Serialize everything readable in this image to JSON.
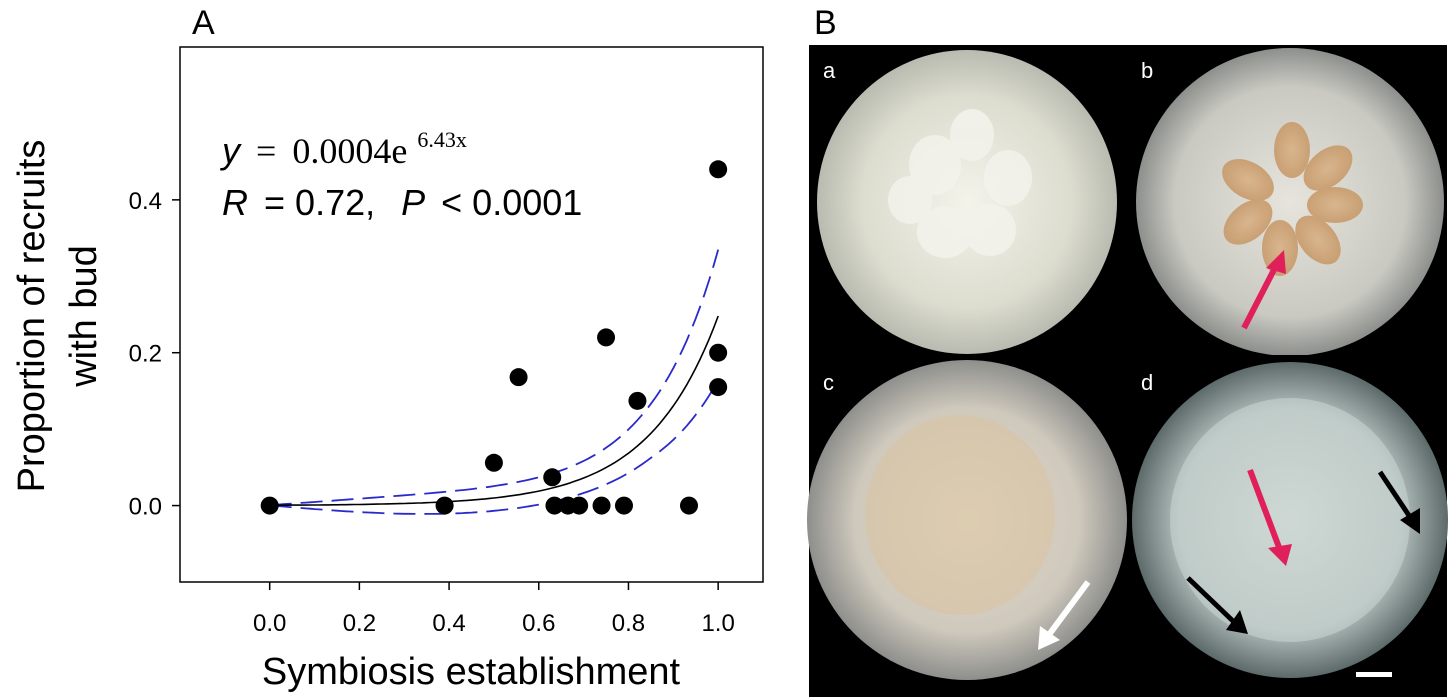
{
  "panel_a": {
    "letter": "A",
    "equation": {
      "y_var": "y",
      "equals": "=",
      "coef": "0.0004e",
      "exponent": "6.43x",
      "r_var": "R",
      "r_value": "= 0.72,",
      "p_var": "P",
      "p_value": "< 0.0001"
    }
  },
  "panel_b": {
    "letter": "B",
    "sub_labels": [
      "a",
      "b",
      "c",
      "d"
    ]
  },
  "chart_data": {
    "type": "scatter",
    "xlabel": "Symbiosis establishment",
    "ylabel_lines": [
      "Proportion of recruits",
      "with bud"
    ],
    "xlim": [
      -0.2,
      1.1
    ],
    "ylim": [
      -0.1,
      0.6
    ],
    "xticks": [
      0.0,
      0.2,
      0.4,
      0.6,
      0.8,
      1.0
    ],
    "xtick_labels": [
      "0.0",
      "0.2",
      "0.4",
      "0.6",
      "0.8",
      "1.0"
    ],
    "yticks": [
      0.0,
      0.2,
      0.4
    ],
    "ytick_labels": [
      "0.0",
      "0.2",
      "0.4"
    ],
    "points": [
      {
        "x": 0.0,
        "y": 0.0
      },
      {
        "x": 0.39,
        "y": 0.0
      },
      {
        "x": 0.5,
        "y": 0.056
      },
      {
        "x": 0.555,
        "y": 0.168
      },
      {
        "x": 0.63,
        "y": 0.037
      },
      {
        "x": 0.635,
        "y": 0.0
      },
      {
        "x": 0.665,
        "y": 0.0
      },
      {
        "x": 0.69,
        "y": 0.0
      },
      {
        "x": 0.74,
        "y": 0.0
      },
      {
        "x": 0.75,
        "y": 0.22
      },
      {
        "x": 0.79,
        "y": 0.0
      },
      {
        "x": 0.82,
        "y": 0.137
      },
      {
        "x": 0.935,
        "y": 0.0
      },
      {
        "x": 1.0,
        "y": 0.44
      },
      {
        "x": 1.0,
        "y": 0.2
      },
      {
        "x": 1.0,
        "y": 0.155
      }
    ],
    "fit": {
      "a": 0.0004,
      "b": 6.43,
      "x_range": [
        0.0,
        1.0
      ],
      "color": "#000000"
    },
    "confidence_band": {
      "color": "#2a2acc"
    }
  },
  "colors": {
    "fit_line": "#000000",
    "ci_line": "#2a2acc",
    "pink_arrow": "#e0205a",
    "white_arrow": "#ffffff",
    "black_arrow": "#000000"
  }
}
